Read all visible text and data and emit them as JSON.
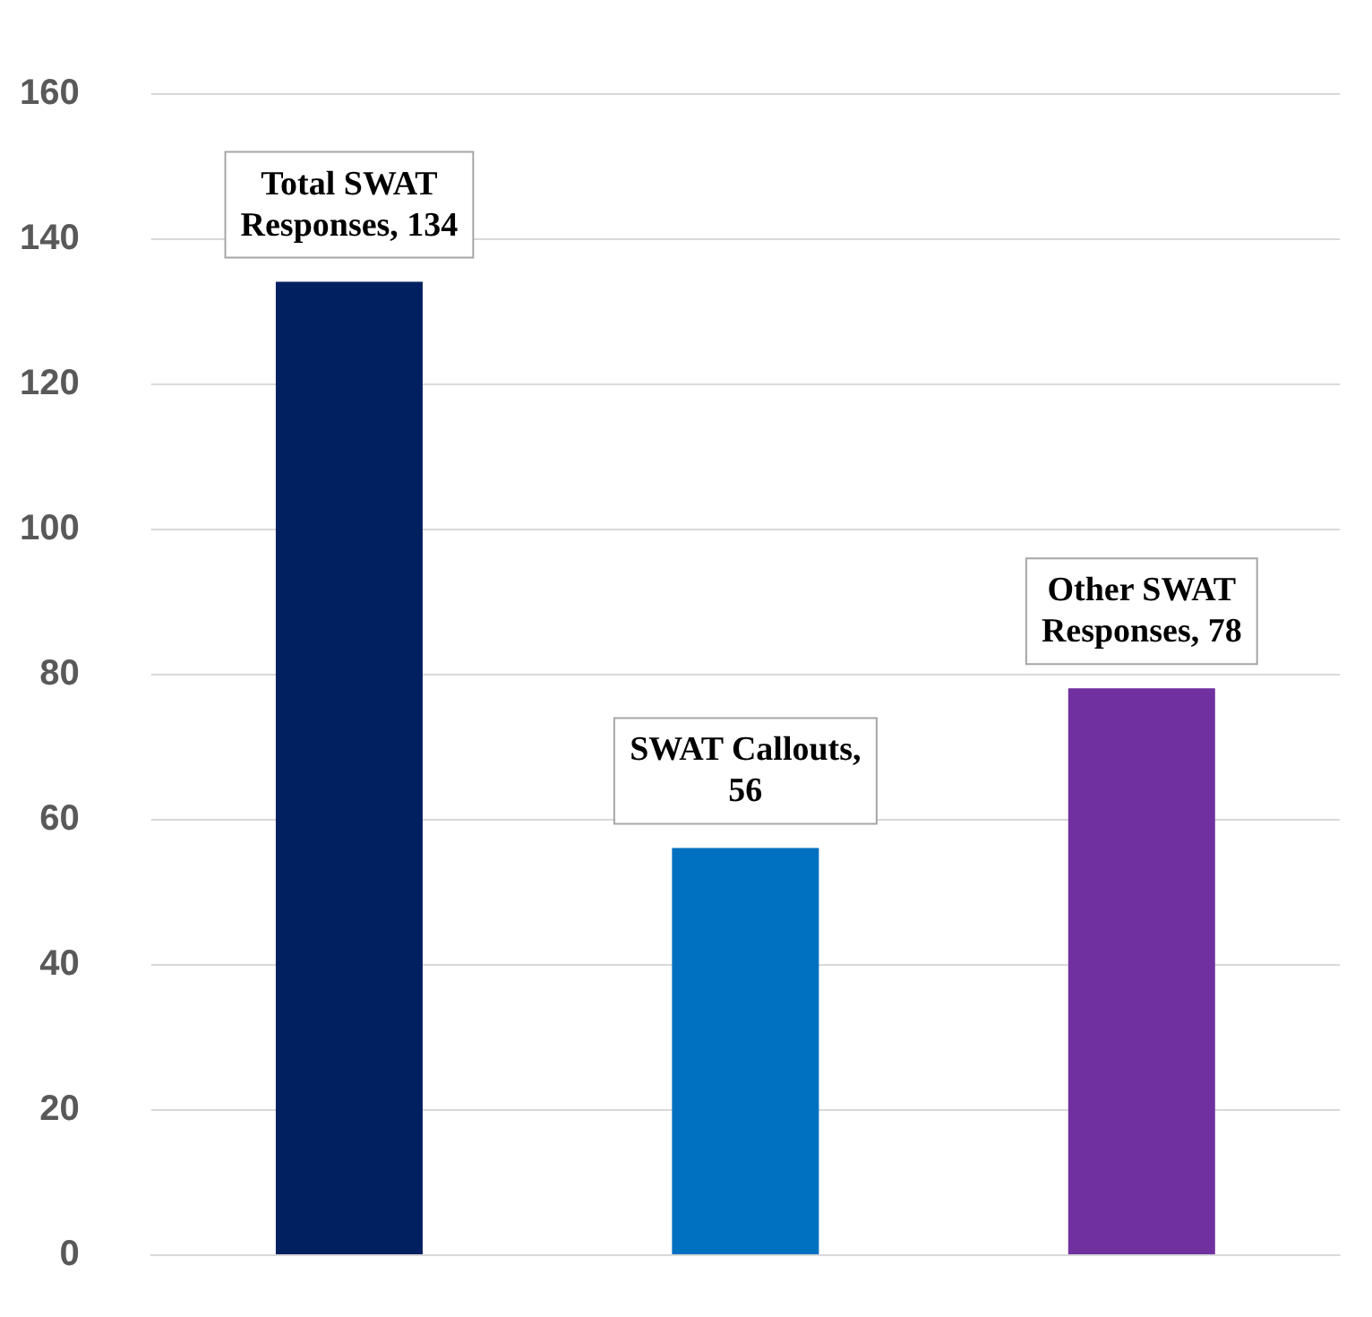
{
  "chart_data": {
    "type": "bar",
    "categories": [
      null,
      null,
      null
    ],
    "values": [
      134,
      56,
      78
    ],
    "colors": [
      "#002060",
      "#0070c0",
      "#7030a0"
    ],
    "value_labels": [
      "Total SWAT Responses, 134",
      "SWAT Callouts, 56",
      "Other SWAT Responses, 78"
    ],
    "ylim": [
      0,
      160
    ],
    "yticks": [
      0,
      20,
      40,
      60,
      80,
      100,
      120,
      140,
      160
    ],
    "grid": "y",
    "tick_labels": "y"
  }
}
